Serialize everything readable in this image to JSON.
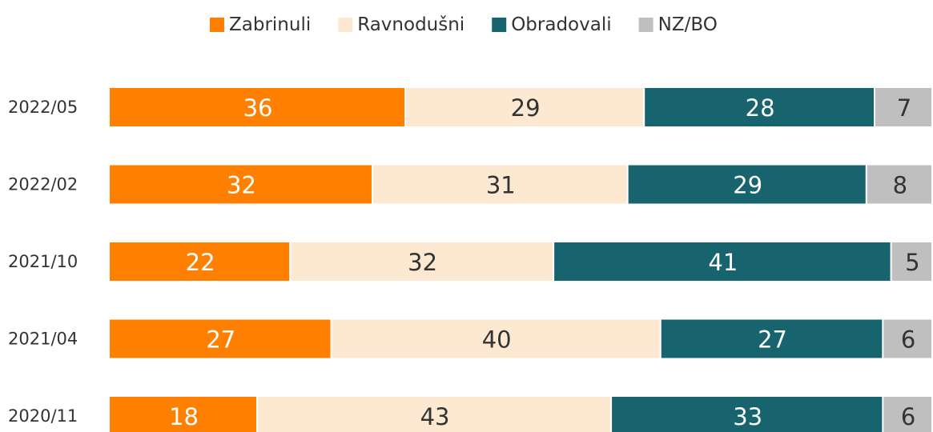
{
  "chart_data": {
    "type": "stacked-bar-horizontal",
    "categories": [
      "2022/05",
      "2022/02",
      "2021/10",
      "2021/04",
      "2020/11"
    ],
    "series": [
      {
        "name": "Zabrinuli",
        "color": "#ff8000",
        "values": [
          36,
          32,
          22,
          27,
          18
        ]
      },
      {
        "name": "Ravnodušni",
        "color": "#fde9d2",
        "values": [
          29,
          31,
          32,
          40,
          43
        ]
      },
      {
        "name": "Obradovali",
        "color": "#17646e",
        "values": [
          28,
          29,
          41,
          27,
          33
        ]
      },
      {
        "name": "NZ/BO",
        "color": "#bfbfbf",
        "values": [
          7,
          8,
          5,
          6,
          6
        ]
      }
    ],
    "xlim": [
      0,
      100
    ],
    "legend": "top"
  }
}
